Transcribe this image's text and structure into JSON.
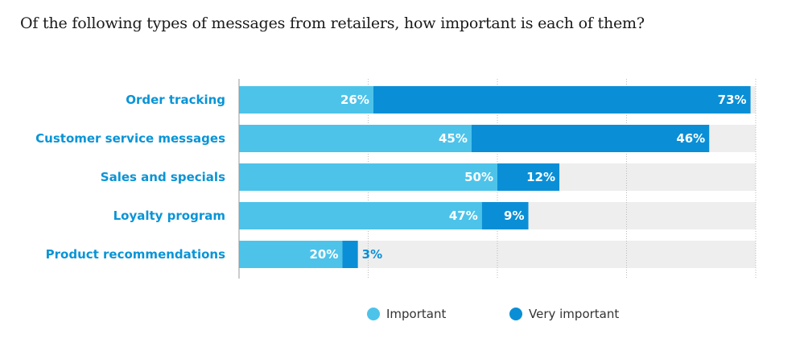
{
  "title": "Of the following types of messages from retailers, how important is each of them?",
  "chart_data": {
    "type": "bar",
    "orientation": "horizontal",
    "stacked": true,
    "categories": [
      "Order tracking",
      "Customer service messages",
      "Sales and specials",
      "Loyalty program",
      "Product recommendations"
    ],
    "series": [
      {
        "name": "Important",
        "values": [
          26,
          45,
          50,
          47,
          20
        ],
        "labels": [
          "26%",
          "45%",
          "50%",
          "47%",
          "20%"
        ],
        "color": "#4dc3ea"
      },
      {
        "name": "Very important",
        "values": [
          73,
          46,
          12,
          9,
          3
        ],
        "labels": [
          "73%",
          "46%",
          "12%",
          "9%",
          "3%"
        ],
        "color": "#0a8fd6"
      }
    ],
    "xlim": [
      0,
      100
    ],
    "grid": true,
    "legend": "bottom-center",
    "track_color": "#eeeeee",
    "label_color": "#0a94d6"
  }
}
